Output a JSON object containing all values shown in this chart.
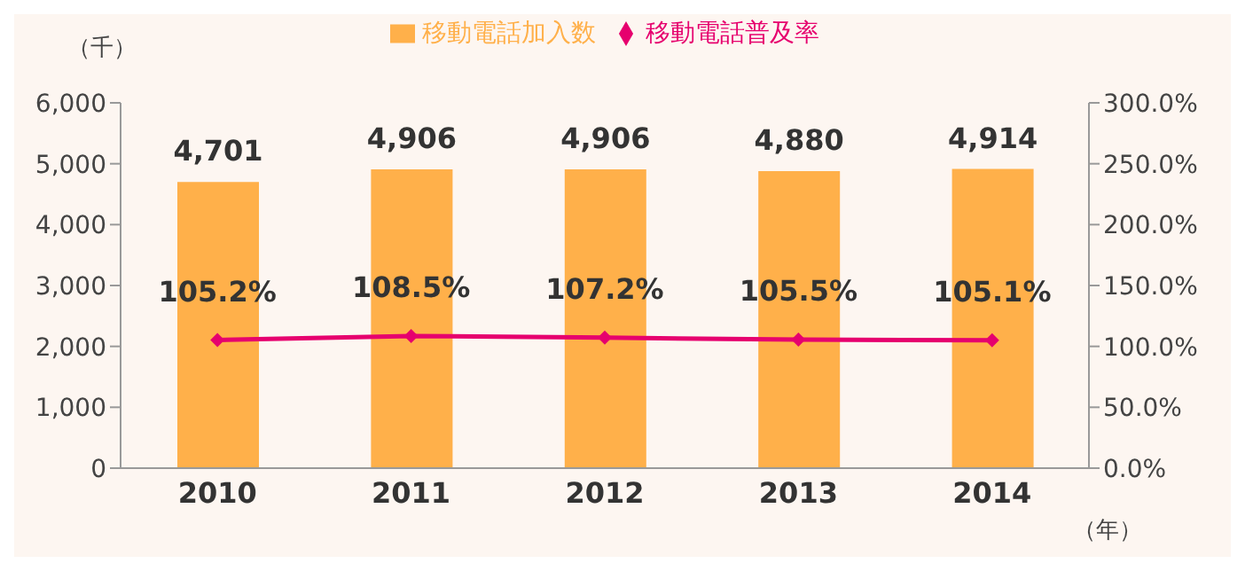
{
  "chart_data": {
    "type": "bar",
    "xlabel": "（年）",
    "ylabel": "（千）",
    "categories": [
      "2010",
      "2011",
      "2012",
      "2013",
      "2014"
    ],
    "series": [
      {
        "name": "移動電話加入数",
        "color": "#ffb04a",
        "values": [
          4701,
          4906,
          4906,
          4880,
          4914
        ],
        "value_labels": [
          "4,701",
          "4,906",
          "4,906",
          "4,880",
          "4,914"
        ]
      },
      {
        "name": "移動電話普及率",
        "type": "line",
        "axis": "y2",
        "color": "#e6006e",
        "values": [
          105.2,
          108.5,
          107.2,
          105.5,
          105.1
        ],
        "value_labels": [
          "105.2%",
          "108.5%",
          "107.2%",
          "105.5%",
          "105.1%"
        ]
      }
    ],
    "ylim": [
      0,
      6000
    ],
    "yticks": [
      {
        "value": 0,
        "label": "0"
      },
      {
        "value": 1000,
        "label": "1,000"
      },
      {
        "value": 2000,
        "label": "2,000"
      },
      {
        "value": 3000,
        "label": "3,000"
      },
      {
        "value": 4000,
        "label": "4,000"
      },
      {
        "value": 5000,
        "label": "5,000"
      },
      {
        "value": 6000,
        "label": "6,000"
      }
    ],
    "y2lim": [
      0,
      300
    ],
    "y2ticks": [
      {
        "value": 0,
        "label": "0.0%"
      },
      {
        "value": 50,
        "label": "50.0%"
      },
      {
        "value": 100,
        "label": "100.0%"
      },
      {
        "value": 150,
        "label": "150.0%"
      },
      {
        "value": 200,
        "label": "200.0%"
      },
      {
        "value": 250,
        "label": "250.0%"
      },
      {
        "value": 300,
        "label": "300.0%"
      }
    ],
    "legend": "top",
    "marker": "diamond",
    "line_style": "solid"
  }
}
